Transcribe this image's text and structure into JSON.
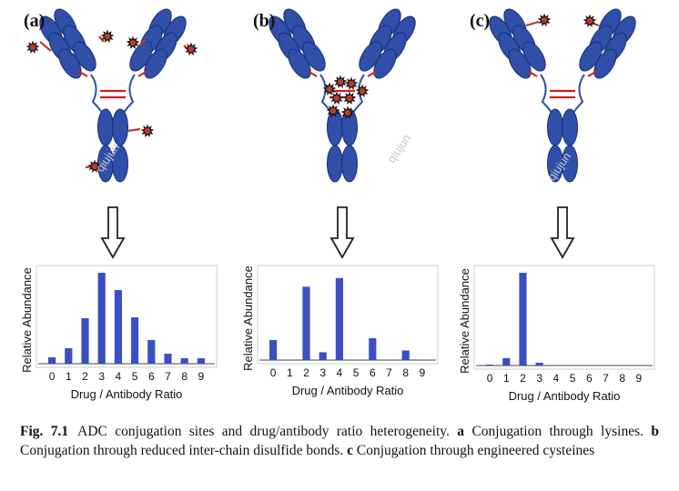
{
  "colors": {
    "antibody": "#2f4fa8",
    "antibody_stroke": "#1a2f78",
    "hinge": "#2f4fa8",
    "disulfide": "#d11f1f",
    "linker": "#c0392b",
    "drug_fill": "#c0392b",
    "drug_star": "#1a1a1a",
    "bar": "#3b4fc4",
    "arrow": "#222222"
  },
  "panels": [
    {
      "label": "(a)",
      "conjugation": "lysines"
    },
    {
      "label": "(b)",
      "conjugation": "reduced inter-chain disulfide bonds"
    },
    {
      "label": "(c)",
      "conjugation": "engineered cysteines"
    }
  ],
  "watermark": "qiujun",
  "chart_data": [
    {
      "type": "bar",
      "categories": [
        "0",
        "1",
        "2",
        "3",
        "4",
        "5",
        "6",
        "7",
        "8",
        "9"
      ],
      "values": [
        7,
        17,
        50,
        100,
        81,
        51,
        26,
        11,
        6,
        6
      ],
      "xlabel": "Drug / Antibody Ratio",
      "ylabel": "Relative Abundance",
      "ylim": [
        0,
        100
      ],
      "grid": false
    },
    {
      "type": "bar",
      "categories": [
        "0",
        "1",
        "2",
        "3",
        "4",
        "5",
        "6",
        "7",
        "8",
        "9"
      ],
      "values": [
        23,
        0,
        84,
        9,
        94,
        0,
        25,
        0,
        11,
        0
      ],
      "xlabel": "Drug / Antibody Ratio",
      "ylabel": "Relative Abundance",
      "ylim": [
        0,
        100
      ],
      "grid": false
    },
    {
      "type": "bar",
      "categories": [
        "0",
        "1",
        "2",
        "3",
        "4",
        "5",
        "6",
        "7",
        "8",
        "9"
      ],
      "values": [
        1,
        8,
        100,
        3,
        0,
        0,
        0,
        0,
        0,
        0
      ],
      "xlabel": "Drug / Antibody Ratio",
      "ylabel": "Relative Abundance",
      "ylim": [
        0,
        100
      ],
      "grid": false
    }
  ],
  "caption": {
    "fig_label": "Fig. 7.1",
    "title": "ADC conjugation sites and drug/antibody ratio heterogeneity.",
    "a_label": "a",
    "a_text": "Conjugation through lysines.",
    "b_label": "b",
    "b_text": "Conjugation through reduced inter-chain disulfide bonds.",
    "c_label": "c",
    "c_text": "Conjugation through engineered cysteines"
  }
}
